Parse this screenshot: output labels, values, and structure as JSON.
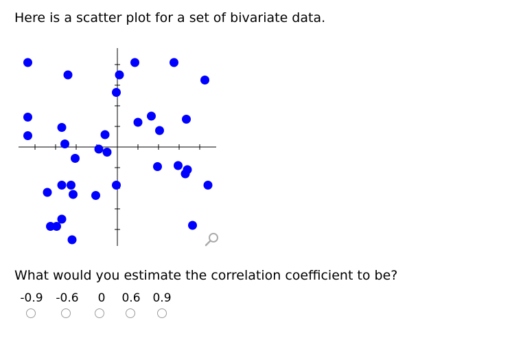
{
  "prompt": "Here is a scatter plot for a set of bivariate data.",
  "question": "What would you estimate the correlation coefficient to be?",
  "choices": [
    {
      "label": "-0.9"
    },
    {
      "label": "-0.6"
    },
    {
      "label": "0"
    },
    {
      "label": "0.6"
    },
    {
      "label": "0.9"
    }
  ],
  "icons": {
    "zoom": "magnifier-icon"
  },
  "colors": {
    "points": "#0000ff",
    "axes": "#000000",
    "radio_border": "#9a9a9a",
    "zoom_icon": "#aaaaaa"
  },
  "chart_data": {
    "type": "scatter",
    "title": "",
    "xlabel": "",
    "ylabel": "",
    "axes": "centered-cross",
    "xlim": [
      -5,
      5
    ],
    "ylim": [
      -5,
      5
    ],
    "x_ticks": [
      -4,
      -3,
      -2,
      -1,
      1,
      2,
      3,
      4
    ],
    "y_ticks": [
      -4,
      -3,
      -2,
      -1,
      1,
      2,
      3,
      4
    ],
    "points": [
      {
        "x": -4.35,
        "y": 4.1
      },
      {
        "x": -2.4,
        "y": 3.5
      },
      {
        "x": 0.1,
        "y": 3.5
      },
      {
        "x": 0.85,
        "y": 4.1
      },
      {
        "x": 2.75,
        "y": 4.1
      },
      {
        "x": 4.25,
        "y": 3.25
      },
      {
        "x": -0.05,
        "y": 2.65
      },
      {
        "x": -4.35,
        "y": 1.45
      },
      {
        "x": 1.0,
        "y": 1.2
      },
      {
        "x": 1.65,
        "y": 1.5
      },
      {
        "x": 2.05,
        "y": 0.8
      },
      {
        "x": 3.35,
        "y": 1.35
      },
      {
        "x": -4.35,
        "y": 0.55
      },
      {
        "x": -2.7,
        "y": 0.95
      },
      {
        "x": -0.6,
        "y": 0.6
      },
      {
        "x": -2.55,
        "y": 0.15
      },
      {
        "x": -0.9,
        "y": -0.1
      },
      {
        "x": -0.5,
        "y": -0.25
      },
      {
        "x": -2.05,
        "y": -0.55
      },
      {
        "x": 1.95,
        "y": -0.95
      },
      {
        "x": 2.95,
        "y": -0.9
      },
      {
        "x": 3.4,
        "y": -1.1
      },
      {
        "x": 3.3,
        "y": -1.3
      },
      {
        "x": -2.7,
        "y": -1.85
      },
      {
        "x": -2.25,
        "y": -1.85
      },
      {
        "x": -3.4,
        "y": -2.2
      },
      {
        "x": -2.15,
        "y": -2.3
      },
      {
        "x": -1.05,
        "y": -2.35
      },
      {
        "x": -0.05,
        "y": -1.85
      },
      {
        "x": 4.4,
        "y": -1.85
      },
      {
        "x": -2.7,
        "y": -3.5
      },
      {
        "x": -3.25,
        "y": -3.85
      },
      {
        "x": -2.95,
        "y": -3.85
      },
      {
        "x": -2.2,
        "y": -4.5
      },
      {
        "x": 3.65,
        "y": -3.8
      }
    ]
  }
}
